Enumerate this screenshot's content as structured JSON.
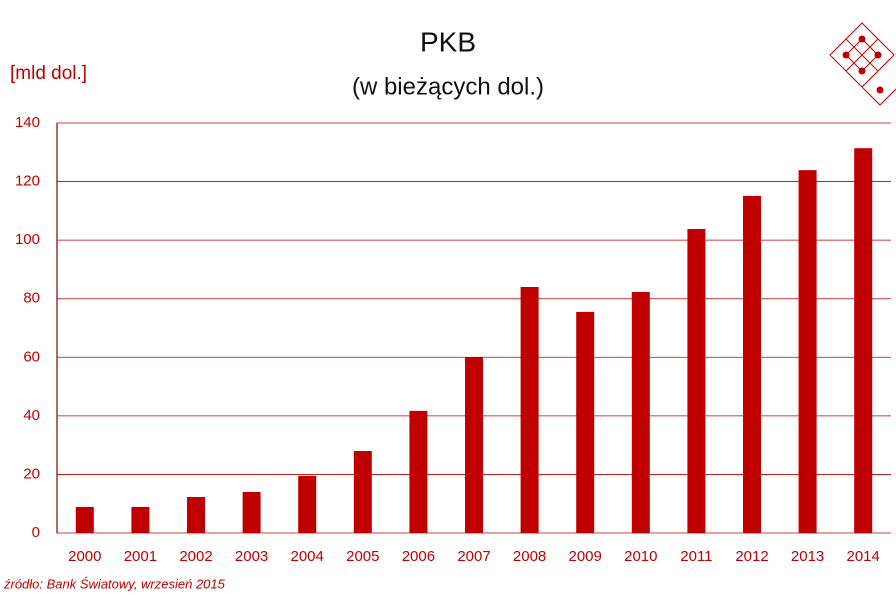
{
  "chart_data": {
    "type": "bar",
    "title": "PKB",
    "subtitle": "(w bieżących dol.)",
    "y_label": "[mld dol.]",
    "source": "źródło: Bank Światowy, wrzesień 2015",
    "categories": [
      "2000",
      "2001",
      "2002",
      "2003",
      "2004",
      "2005",
      "2006",
      "2007",
      "2008",
      "2009",
      "2010",
      "2011",
      "2012",
      "2013",
      "2014"
    ],
    "values": [
      8.9,
      8.9,
      12.3,
      14.0,
      19.5,
      28.0,
      41.7,
      60.1,
      84.0,
      75.5,
      82.3,
      103.8,
      115.1,
      123.9,
      131.4
    ],
    "color": "#c00000",
    "ylim": [
      0,
      140
    ],
    "yticks": [
      0,
      20,
      40,
      60,
      80,
      100,
      120,
      140
    ],
    "grid": true
  }
}
